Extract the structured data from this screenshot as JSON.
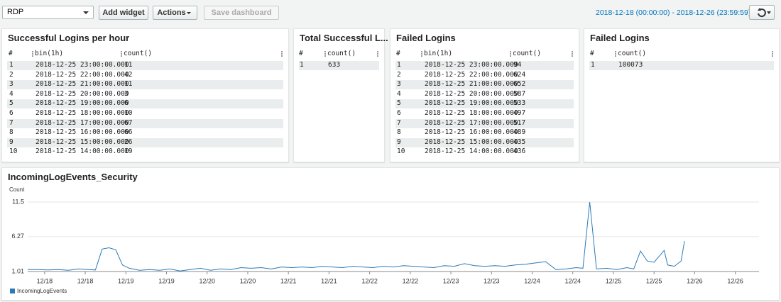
{
  "toolbar": {
    "dashboard": "RDP",
    "add_widget": "Add widget",
    "actions": "Actions",
    "save": "Save dashboard",
    "time_range": "2018-12-18 (00:00:00) - 2018-12-26 (23:59:59)"
  },
  "widgets": [
    {
      "title": "Successful Logins per hour",
      "columns": [
        "#",
        "bin(1h)",
        "count()"
      ],
      "rows": [
        [
          1,
          "2018-12-25 23:00:00.000",
          11
        ],
        [
          2,
          "2018-12-25 22:00:00.000",
          42
        ],
        [
          3,
          "2018-12-25 21:00:00.000",
          11
        ],
        [
          4,
          "2018-12-25 20:00:00.000",
          3
        ],
        [
          5,
          "2018-12-25 19:00:00.000",
          6
        ],
        [
          6,
          "2018-12-25 18:00:00.000",
          10
        ],
        [
          7,
          "2018-12-25 17:00:00.000",
          67
        ],
        [
          8,
          "2018-12-25 16:00:00.000",
          66
        ],
        [
          9,
          "2018-12-25 15:00:00.000",
          26
        ],
        [
          10,
          "2018-12-25 14:00:00.000",
          19
        ]
      ]
    },
    {
      "title": "Total Successful L...",
      "columns": [
        "#",
        "count()"
      ],
      "rows": [
        [
          1,
          633
        ]
      ]
    },
    {
      "title": "Failed Logins",
      "columns": [
        "#",
        "bin(1h)",
        "count()"
      ],
      "rows": [
        [
          1,
          "2018-12-25 23:00:00.000",
          94
        ],
        [
          2,
          "2018-12-25 22:00:00.000",
          624
        ],
        [
          3,
          "2018-12-25 21:00:00.000",
          652
        ],
        [
          4,
          "2018-12-25 20:00:00.000",
          587
        ],
        [
          5,
          "2018-12-25 19:00:00.000",
          533
        ],
        [
          6,
          "2018-12-25 18:00:00.000",
          497
        ],
        [
          7,
          "2018-12-25 17:00:00.000",
          517
        ],
        [
          8,
          "2018-12-25 16:00:00.000",
          489
        ],
        [
          9,
          "2018-12-25 15:00:00.000",
          435
        ],
        [
          10,
          "2018-12-25 14:00:00.000",
          436
        ]
      ]
    },
    {
      "title": "Failed Logins",
      "columns": [
        "#",
        "count()"
      ],
      "rows": [
        [
          1,
          100073
        ]
      ]
    }
  ],
  "chart_data": {
    "type": "line",
    "title": "IncomingLogEvents_Security",
    "y_label": "Count",
    "x": [
      0,
      3,
      6,
      9,
      12,
      15,
      18,
      20,
      22,
      24,
      26,
      28,
      30,
      33,
      36,
      39,
      42,
      45,
      48,
      51,
      54,
      57,
      60,
      63,
      66,
      69,
      72,
      75,
      78,
      81,
      84,
      87,
      90,
      93,
      96,
      99,
      102,
      105,
      108,
      111,
      114,
      117,
      120,
      123,
      126,
      129,
      132,
      135,
      138,
      141,
      144,
      147,
      150,
      153,
      156,
      159,
      162,
      164,
      166,
      168,
      171,
      174,
      177,
      179,
      181,
      183,
      185,
      188,
      189,
      191,
      193,
      194
    ],
    "series": [
      {
        "name": "IncomingLogEvents",
        "color": "#2a7ab8",
        "values": [
          1.3,
          1.3,
          1.25,
          1.3,
          1.2,
          1.4,
          1.3,
          1.25,
          4.4,
          4.6,
          4.3,
          2.0,
          1.5,
          1.2,
          1.3,
          1.2,
          1.4,
          1.1,
          1.3,
          1.5,
          1.2,
          1.4,
          1.3,
          1.6,
          1.5,
          1.6,
          1.4,
          1.7,
          1.6,
          1.7,
          1.6,
          1.8,
          1.7,
          1.6,
          1.8,
          1.7,
          1.6,
          1.8,
          1.7,
          1.9,
          1.8,
          1.7,
          1.6,
          1.9,
          1.8,
          2.2,
          1.9,
          1.8,
          1.9,
          1.8,
          2.0,
          2.1,
          2.3,
          2.5,
          1.3,
          1.4,
          1.6,
          1.5,
          11.5,
          1.4,
          1.5,
          1.3,
          1.6,
          1.4,
          4.1,
          2.6,
          2.4,
          4.2,
          2.0,
          1.8,
          2.6,
          5.6
        ]
      }
    ],
    "xlim": [
      0,
      216
    ],
    "xticks": [
      {
        "value": 5,
        "label": "12/18"
      },
      {
        "value": 17,
        "label": "12/18"
      },
      {
        "value": 29,
        "label": "12/19"
      },
      {
        "value": 41,
        "label": "12/19"
      },
      {
        "value": 53,
        "label": "12/20"
      },
      {
        "value": 65,
        "label": "12/20"
      },
      {
        "value": 77,
        "label": "12/21"
      },
      {
        "value": 89,
        "label": "12/21"
      },
      {
        "value": 101,
        "label": "12/22"
      },
      {
        "value": 113,
        "label": "12/22"
      },
      {
        "value": 125,
        "label": "12/23"
      },
      {
        "value": 137,
        "label": "12/23"
      },
      {
        "value": 149,
        "label": "12/24"
      },
      {
        "value": 161,
        "label": "12/24"
      },
      {
        "value": 173,
        "label": "12/25"
      },
      {
        "value": 185,
        "label": "12/25"
      },
      {
        "value": 197,
        "label": "12/26"
      },
      {
        "value": 209,
        "label": "12/26"
      }
    ],
    "ylim": [
      1.01,
      11.5
    ],
    "yticks": [
      1.01,
      6.27,
      11.5
    ],
    "grid": true
  }
}
